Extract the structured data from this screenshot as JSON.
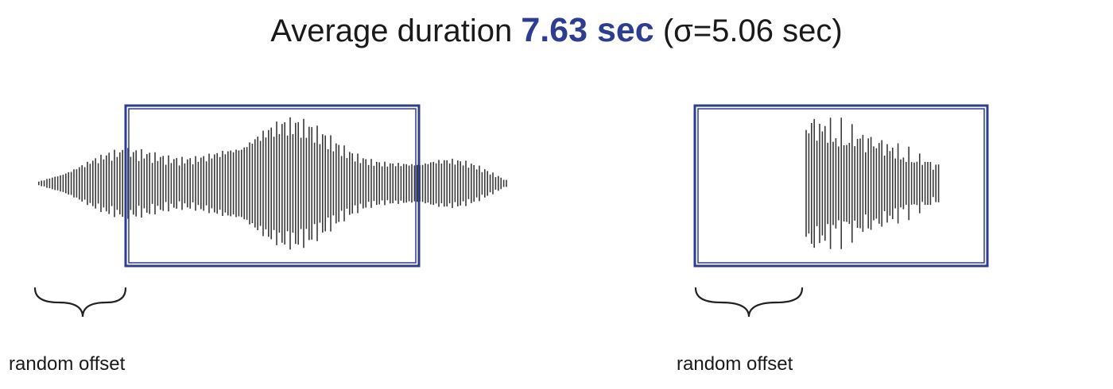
{
  "title": {
    "prefix": "Average duration ",
    "value": "7.63 sec",
    "suffix": " (σ=5.06 sec)"
  },
  "colors": {
    "accent": "#2e3d8f",
    "waveform": "#3a3a3a"
  },
  "examples": [
    {
      "caption": "random offset"
    },
    {
      "caption": "random offset"
    }
  ]
}
